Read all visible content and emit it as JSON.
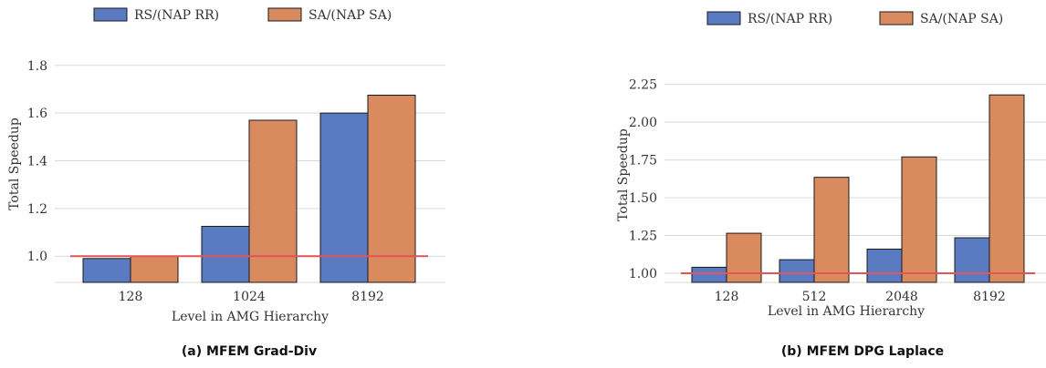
{
  "colors": {
    "rs": "#5a7bc2",
    "sa": "#d98b5f",
    "baseline": "#e05555",
    "grid": "#d9d9d9",
    "edge": "#1a1a1a"
  },
  "chart_data": [
    {
      "type": "bar",
      "caption": "(a) MFEM Grad-Div",
      "categories": [
        "128",
        "1024",
        "8192"
      ],
      "series": [
        {
          "name": "RS/(NAP RR)",
          "values": [
            0.99,
            1.125,
            1.6
          ]
        },
        {
          "name": "SA/(NAP SA)",
          "values": [
            1.0,
            1.57,
            1.675
          ]
        }
      ],
      "baseline": 1.0,
      "xlabel": "Level in AMG Hierarchy",
      "ylabel": "Total Speedup",
      "ylim": [
        0.89,
        1.845
      ],
      "yticks": [
        1.0,
        1.2,
        1.4,
        1.6,
        1.8
      ],
      "ytick_labels": [
        "1.0",
        "1.2",
        "1.4",
        "1.6",
        "1.8"
      ],
      "grid": "horizontal",
      "legend": "top"
    },
    {
      "type": "bar",
      "caption": "(b) MFEM DPG Laplace",
      "categories": [
        "128",
        "512",
        "2048",
        "8192"
      ],
      "series": [
        {
          "name": "RS/(NAP RR)",
          "values": [
            1.04,
            1.09,
            1.16,
            1.235
          ]
        },
        {
          "name": "SA/(NAP SA)",
          "values": [
            1.265,
            1.635,
            1.77,
            2.18
          ]
        }
      ],
      "baseline": 1.0,
      "xlabel": "Level in AMG Hierarchy",
      "ylabel": "Total Speedup",
      "ylim": [
        0.94,
        2.35
      ],
      "yticks": [
        1.0,
        1.25,
        1.5,
        1.75,
        2.0,
        2.25
      ],
      "ytick_labels": [
        "1.00",
        "1.25",
        "1.50",
        "1.75",
        "2.00",
        "2.25"
      ],
      "grid": "horizontal",
      "legend": "top"
    }
  ]
}
